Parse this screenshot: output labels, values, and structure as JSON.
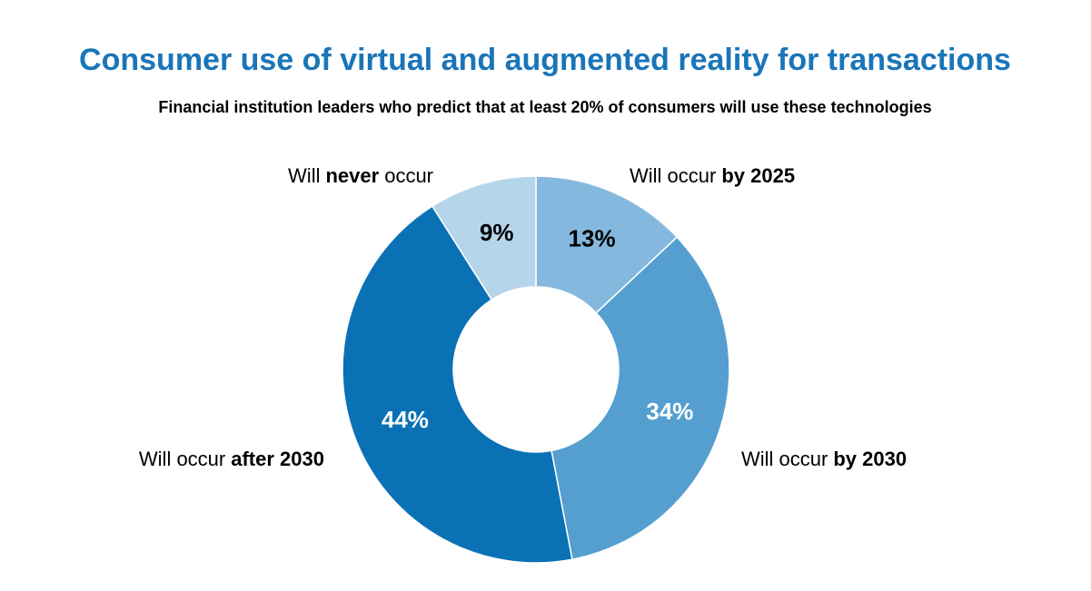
{
  "chart_data": {
    "type": "donut",
    "title": "Consumer use of virtual and augmented reality for transactions",
    "subtitle": "Financial institution leaders who predict that at least 20% of consumers will use these technologies",
    "categories": [
      [
        {
          "text": "Will occur",
          "bold": false
        },
        {
          "text": "by 2025",
          "bold": true
        }
      ],
      [
        {
          "text": "Will occur",
          "bold": false
        },
        {
          "text": "by 2030",
          "bold": true
        }
      ],
      [
        {
          "text": "Will occur",
          "bold": false
        },
        {
          "text": "after 2030",
          "bold": true
        }
      ],
      [
        {
          "text": "Will",
          "bold": false
        },
        {
          "text": "never",
          "bold": true
        },
        {
          "text": "occur",
          "bold": false
        }
      ]
    ],
    "values": [
      13,
      34,
      44,
      9
    ],
    "value_labels": [
      "13%",
      "34%",
      "44%",
      "9%"
    ],
    "colors": [
      "#85b8de",
      "#559fd0",
      "#0b71b5",
      "#b5d5ea"
    ],
    "value_label_colors": [
      "#000000",
      "#ffffff",
      "#ffffff",
      "#000000"
    ]
  }
}
